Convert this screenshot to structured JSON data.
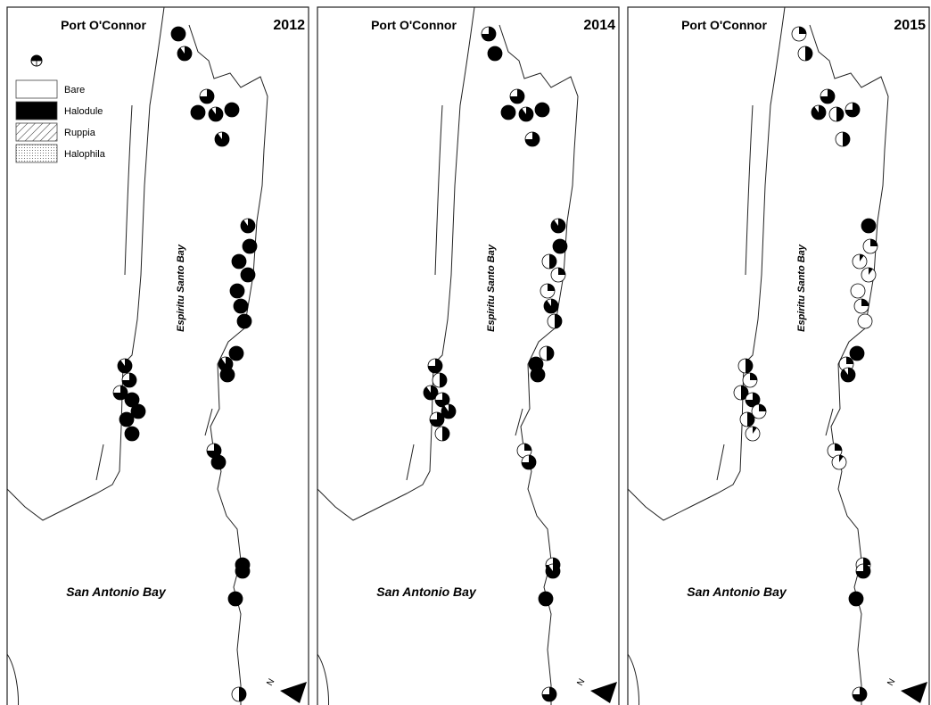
{
  "panels": [
    {
      "place": "Port O'Connor",
      "year": "2012",
      "bay": "Espiritu Santo Bay",
      "outer_bay": "San Antonio Bay",
      "north": "N",
      "halodule_share": [
        1,
        0.9,
        0.75,
        1,
        0.9,
        1,
        0.9,
        0.9,
        1,
        1,
        1,
        1,
        1,
        1,
        1,
        0.9,
        1,
        0.9,
        0.75,
        0.75,
        1,
        1,
        1,
        1,
        0.75,
        1,
        1,
        1,
        1,
        0.5
      ]
    },
    {
      "place": "Port O'Connor",
      "year": "2014",
      "bay": "Espiritu Santo Bay",
      "outer_bay": "San Antonio Bay",
      "north": "N",
      "halodule_share": [
        0.75,
        1,
        0.75,
        1,
        0.9,
        1,
        0.75,
        0.9,
        1,
        0.5,
        0.25,
        0.25,
        0.9,
        0.5,
        0.5,
        1,
        1,
        0.75,
        0.5,
        0.9,
        0.75,
        0.9,
        0.75,
        0.5,
        0.25,
        0.75,
        0.75,
        0.9,
        1,
        0.75
      ]
    },
    {
      "place": "Port O'Connor",
      "year": "2015",
      "bay": "Espiritu Santo Bay",
      "outer_bay": "San Antonio Bay",
      "north": "N",
      "halodule_share": [
        0.25,
        0.5,
        0.75,
        0.9,
        0.5,
        0.75,
        0.5,
        1,
        0.25,
        0.1,
        0.1,
        0,
        0.25,
        0,
        1,
        0.25,
        0.9,
        0.5,
        0.25,
        0.5,
        0.75,
        0.25,
        0.5,
        0.1,
        0.25,
        0.1,
        0.25,
        0.75,
        1,
        0.75
      ]
    }
  ],
  "legend": {
    "items": [
      "Bare",
      "Halodule",
      "Ruppia",
      "Halophila"
    ]
  }
}
